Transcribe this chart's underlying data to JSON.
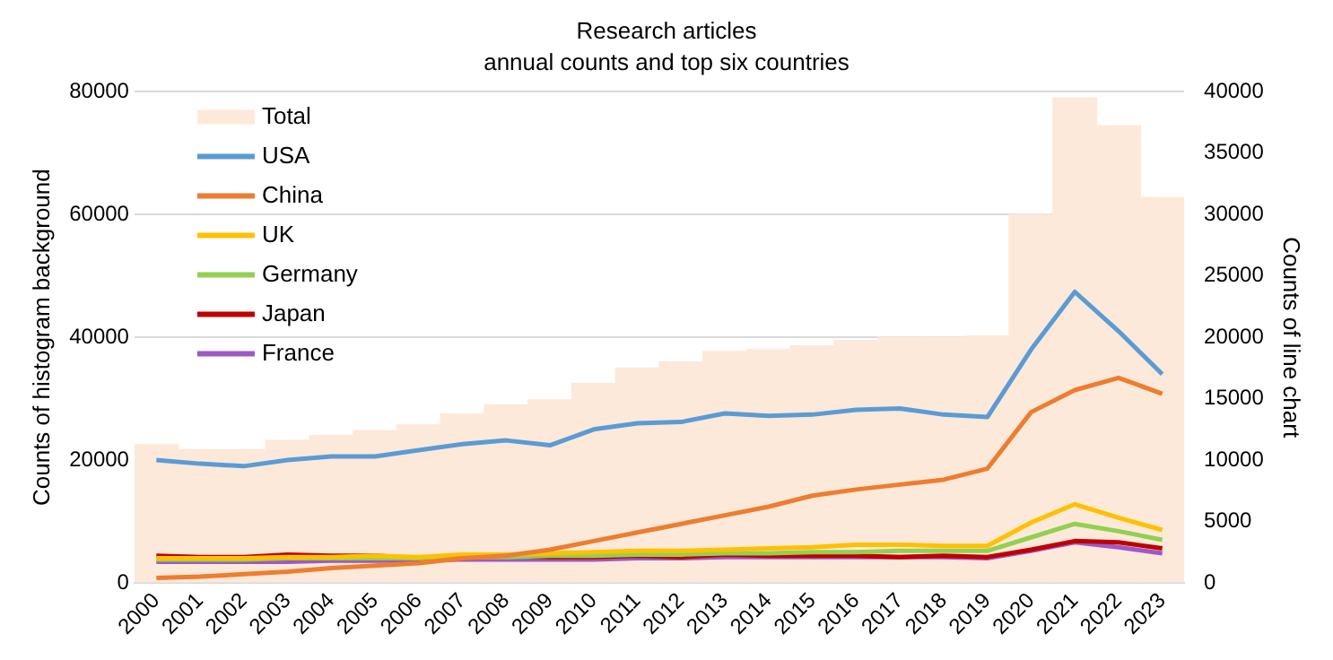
{
  "chart_data": {
    "type": "bar",
    "title": "Research articles",
    "subtitle": "annual counts and top six countries",
    "ylabel": "Counts of histogram background",
    "y2label": "Counts of line chart",
    "categories": [
      "2000",
      "2001",
      "2002",
      "2003",
      "2004",
      "2005",
      "2006",
      "2007",
      "2008",
      "2009",
      "2010",
      "2011",
      "2012",
      "2013",
      "2014",
      "2015",
      "2016",
      "2017",
      "2018",
      "2019",
      "2020",
      "2021",
      "2022",
      "2023"
    ],
    "series": [
      {
        "name": "Total",
        "color": "#fde9d9",
        "values": [
          22500,
          21700,
          21700,
          23200,
          24000,
          24800,
          25700,
          27500,
          29000,
          29800,
          32500,
          35000,
          36000,
          37700,
          38000,
          38600,
          39500,
          40000,
          40000,
          40200,
          60000,
          79000,
          74500,
          62800
        ]
      },
      {
        "name": "USA",
        "type": "line",
        "axis": "y2",
        "color": "#5b9bd5",
        "values": [
          10000,
          9700,
          9500,
          10000,
          10300,
          10300,
          10800,
          11300,
          11600,
          11200,
          12500,
          13000,
          13100,
          13800,
          13600,
          13700,
          14100,
          14200,
          13700,
          13500,
          19000,
          23700,
          20500,
          17000
        ]
      },
      {
        "name": "China",
        "type": "line",
        "axis": "y2",
        "color": "#ed7d31",
        "values": [
          400,
          500,
          700,
          900,
          1200,
          1400,
          1600,
          2000,
          2200,
          2700,
          3400,
          4100,
          4800,
          5500,
          6200,
          7100,
          7600,
          8000,
          8400,
          9300,
          13900,
          15700,
          16700,
          15400
        ]
      },
      {
        "name": "UK",
        "type": "line",
        "axis": "y2",
        "color": "#ffc000",
        "values": [
          2000,
          2000,
          2000,
          2100,
          2100,
          2200,
          2100,
          2300,
          2300,
          2400,
          2500,
          2600,
          2600,
          2700,
          2800,
          2900,
          3100,
          3100,
          3000,
          3000,
          4900,
          6400,
          5300,
          4300
        ]
      },
      {
        "name": "Germany",
        "type": "line",
        "axis": "y2",
        "color": "#92d050",
        "values": [
          1900,
          1900,
          1900,
          2000,
          2000,
          2000,
          2000,
          2100,
          2100,
          2200,
          2200,
          2300,
          2300,
          2400,
          2400,
          2500,
          2500,
          2600,
          2600,
          2600,
          3700,
          4800,
          4200,
          3500
        ]
      },
      {
        "name": "Japan",
        "type": "line",
        "axis": "y2",
        "color": "#c00000",
        "values": [
          2200,
          2100,
          2100,
          2300,
          2200,
          2200,
          2000,
          2200,
          2200,
          2100,
          2100,
          2200,
          2100,
          2300,
          2200,
          2200,
          2200,
          2100,
          2200,
          2100,
          2700,
          3400,
          3300,
          2800
        ]
      },
      {
        "name": "France",
        "type": "line",
        "axis": "y2",
        "color": "#9e58c8",
        "values": [
          1700,
          1700,
          1700,
          1700,
          1800,
          1800,
          1800,
          1900,
          1900,
          1900,
          1900,
          2000,
          2000,
          2100,
          2100,
          2100,
          2100,
          2100,
          2100,
          2000,
          2600,
          3300,
          2900,
          2400
        ]
      }
    ],
    "ylim": [
      0,
      80000
    ],
    "yticks": [
      0,
      20000,
      40000,
      60000,
      80000
    ],
    "y2lim": [
      0,
      40000
    ],
    "y2ticks": [
      0,
      5000,
      10000,
      15000,
      20000,
      25000,
      30000,
      35000,
      40000
    ],
    "grid": "y",
    "legend": "top left"
  }
}
